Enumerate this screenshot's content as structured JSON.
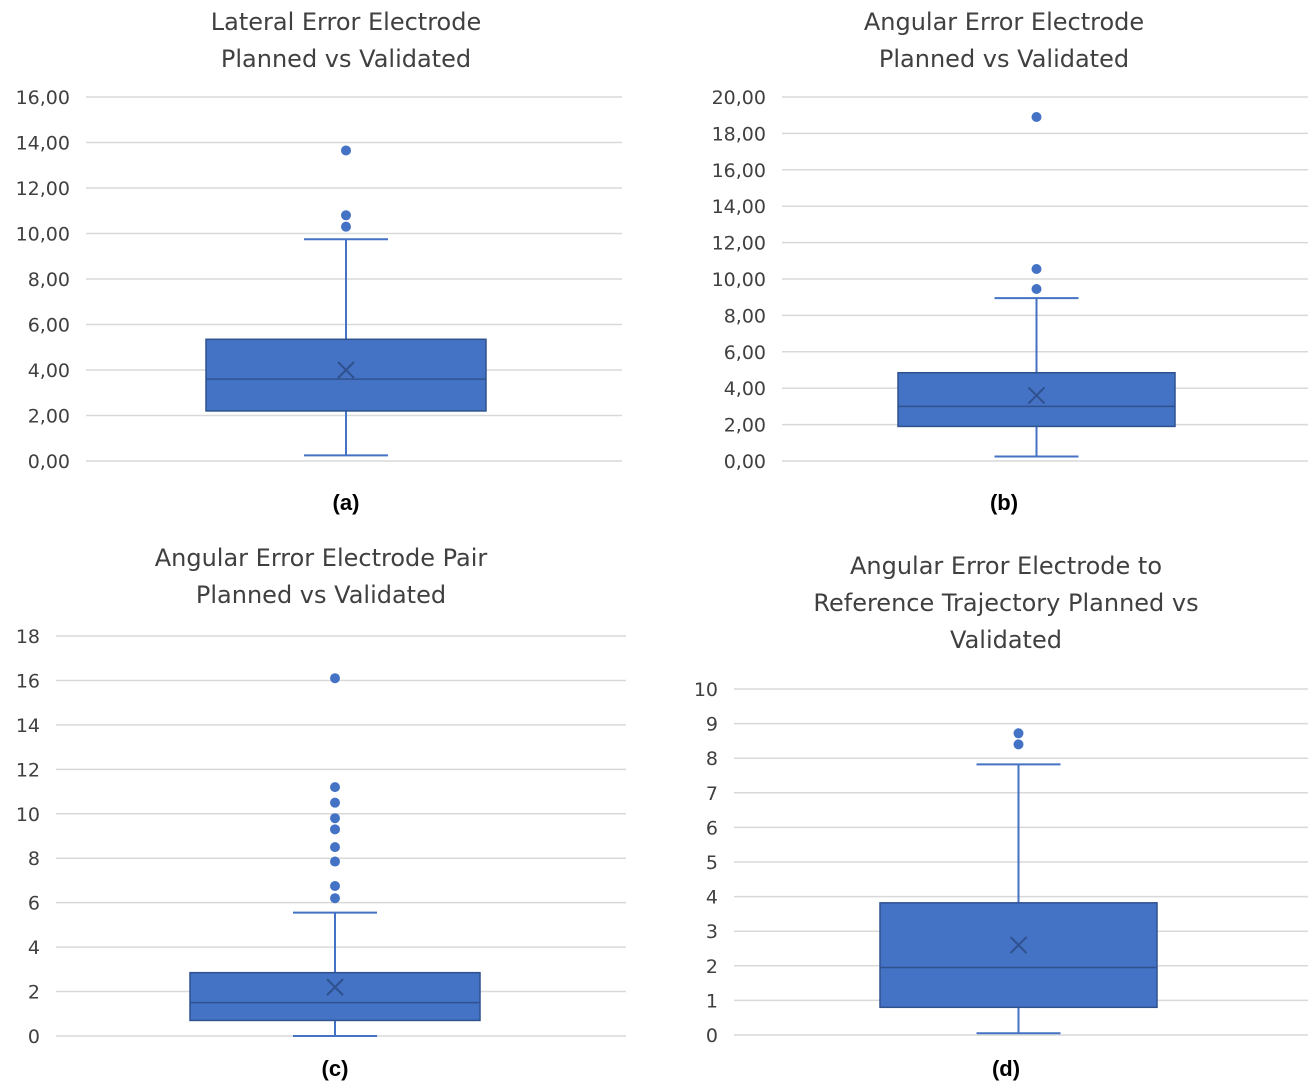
{
  "chart_data": [
    {
      "type": "box",
      "panel_label": "(a)",
      "title_lines": [
        "Lateral Error Electrode",
        "Planned vs Validated"
      ],
      "yticks": [
        "0,00",
        "2,00",
        "4,00",
        "6,00",
        "8,00",
        "10,00",
        "12,00",
        "14,00",
        "16,00"
      ],
      "ylim": [
        0,
        16
      ],
      "grid": true,
      "box": {
        "min": 0.25,
        "q1": 2.2,
        "median": 3.6,
        "mean": 4.0,
        "q3": 5.35,
        "max": 9.75
      },
      "outliers": [
        10.3,
        10.8,
        13.65
      ],
      "color": "#4472C4"
    },
    {
      "type": "box",
      "panel_label": "(b)",
      "title_lines": [
        "Angular Error Electrode",
        "Planned vs Validated"
      ],
      "yticks": [
        "0,00",
        "2,00",
        "4,00",
        "6,00",
        "8,00",
        "10,00",
        "12,00",
        "14,00",
        "16,00",
        "18,00",
        "20,00"
      ],
      "ylim": [
        0,
        20
      ],
      "grid": true,
      "box": {
        "min": 0.25,
        "q1": 1.9,
        "median": 3.0,
        "mean": 3.6,
        "q3": 4.85,
        "max": 8.95
      },
      "outliers": [
        9.45,
        10.55,
        18.9
      ],
      "color": "#4472C4"
    },
    {
      "type": "box",
      "panel_label": "(c)",
      "title_lines": [
        "Angular Error Electrode Pair",
        "Planned vs Validated"
      ],
      "yticks": [
        "0",
        "2",
        "4",
        "6",
        "8",
        "10",
        "12",
        "14",
        "16",
        "18"
      ],
      "ylim": [
        0,
        18
      ],
      "grid": true,
      "box": {
        "min": 0.0,
        "q1": 0.7,
        "median": 1.5,
        "mean": 2.2,
        "q3": 2.85,
        "max": 5.55
      },
      "outliers": [
        6.2,
        6.75,
        7.85,
        8.5,
        9.3,
        9.8,
        10.5,
        11.2,
        16.1
      ],
      "color": "#4472C4"
    },
    {
      "type": "box",
      "panel_label": "(d)",
      "title_lines": [
        "Angular Error Electrode to",
        "Reference Trajectory   Planned vs",
        "Validated"
      ],
      "yticks": [
        "0",
        "1",
        "2",
        "3",
        "4",
        "5",
        "6",
        "7",
        "8",
        "9",
        "10"
      ],
      "ylim": [
        0,
        10
      ],
      "grid": true,
      "box": {
        "min": 0.05,
        "q1": 0.8,
        "median": 1.95,
        "mean": 2.6,
        "q3": 3.82,
        "max": 7.82
      },
      "outliers": [
        8.4,
        8.72
      ],
      "color": "#4472C4"
    }
  ]
}
